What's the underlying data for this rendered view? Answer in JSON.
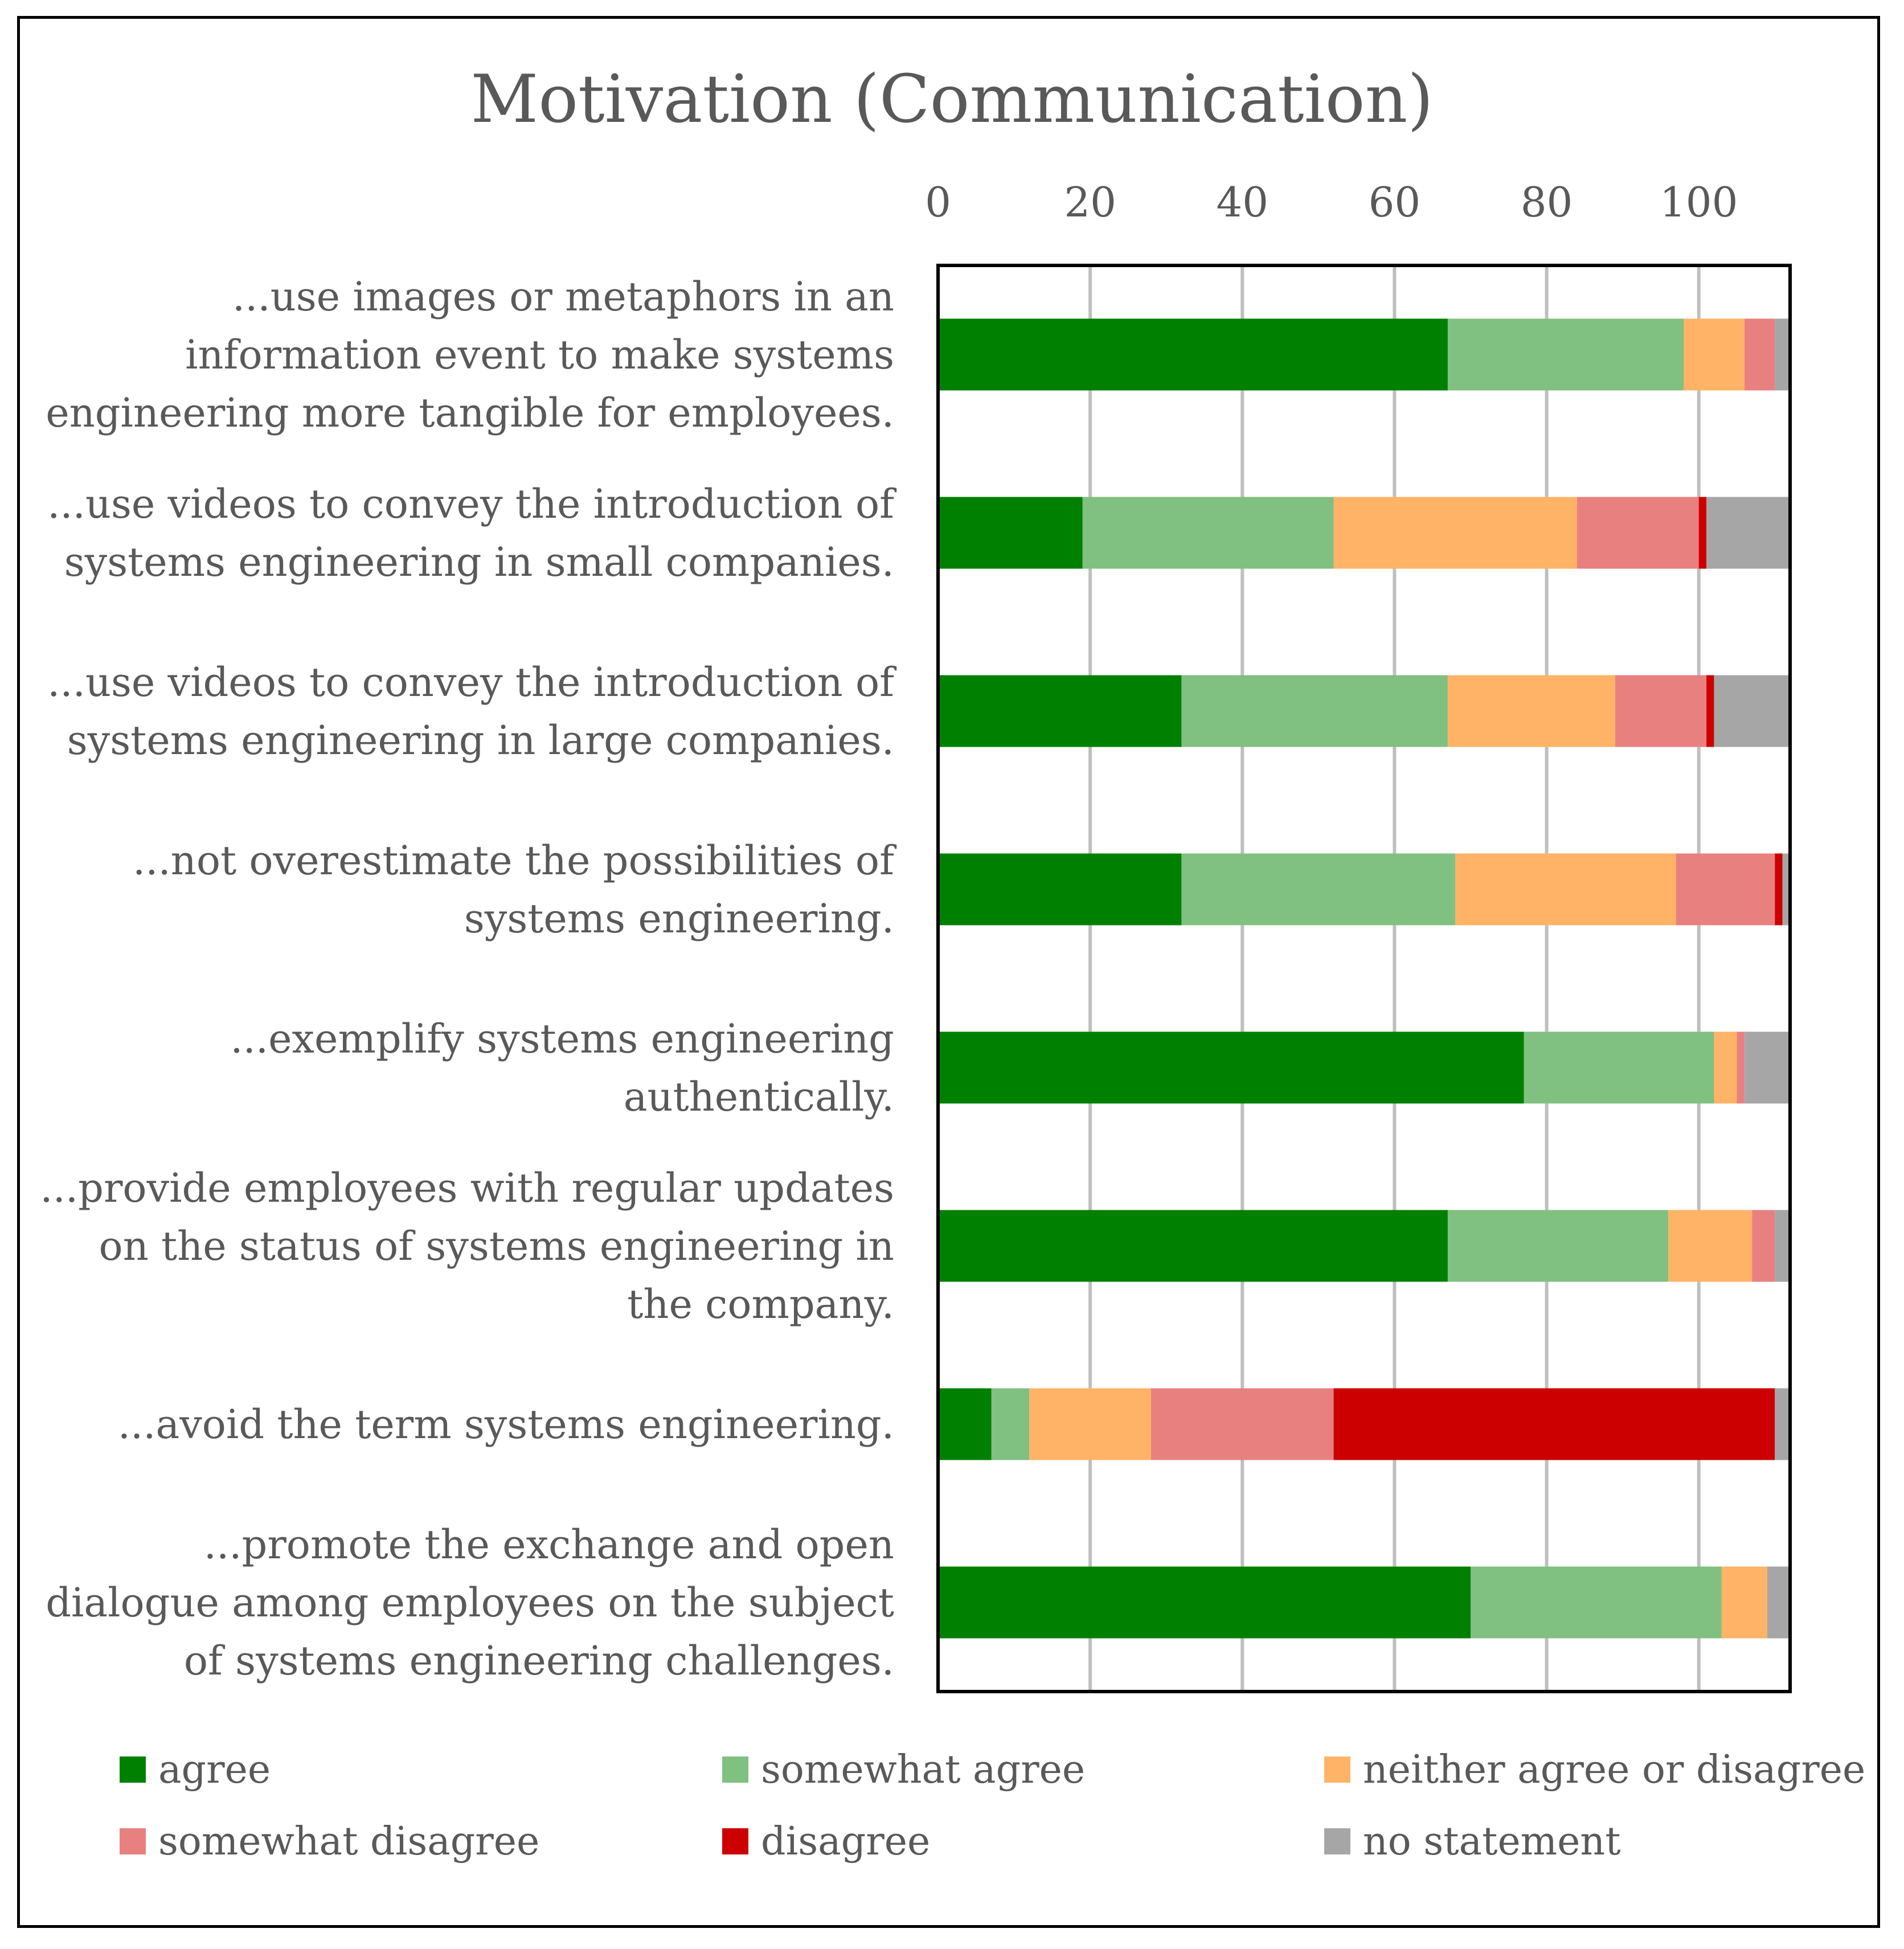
{
  "chart_data": {
    "type": "bar",
    "orientation": "horizontal",
    "stacked": true,
    "title": "Motivation (Communication)",
    "xlim": [
      0,
      112
    ],
    "xticks": [
      0,
      20,
      40,
      60,
      80,
      100
    ],
    "x_axis_position": "top",
    "grid": true,
    "legend_position": "bottom",
    "categories": [
      "...use images or metaphors in an information event to make systems engineering more tangible for employees.",
      "...use videos to convey the introduction of systems engineering in small companies.",
      "...use videos to convey the introduction of systems engineering in large companies.",
      "...not overestimate the possibilities of systems engineering.",
      "...exemplify systems engineering authentically.",
      "...provide employees with regular updates on the status of systems engineering in the company.",
      "...avoid the term systems engineering.",
      "...promote the exchange and open dialogue among employees on the subject of systems engineering challenges."
    ],
    "series": [
      {
        "name": "agree",
        "color": "#008000",
        "values": [
          67,
          19,
          32,
          32,
          77,
          67,
          7,
          70
        ]
      },
      {
        "name": "somewhat agree",
        "color": "#80C080",
        "values": [
          31,
          33,
          35,
          36,
          25,
          29,
          5,
          33
        ]
      },
      {
        "name": "neither agree or disagree",
        "color": "#FFB366",
        "values": [
          8,
          32,
          22,
          29,
          3,
          11,
          16,
          6
        ]
      },
      {
        "name": "somewhat disagree",
        "color": "#E88080",
        "values": [
          4,
          16,
          12,
          13,
          1,
          3,
          24,
          0
        ]
      },
      {
        "name": "disagree",
        "color": "#CC0000",
        "values": [
          0,
          1,
          1,
          1,
          0,
          0,
          58,
          0
        ]
      },
      {
        "name": "no statement",
        "color": "#A6A6A6",
        "values": [
          2,
          11,
          10,
          1,
          6,
          2,
          2,
          3
        ]
      }
    ]
  }
}
